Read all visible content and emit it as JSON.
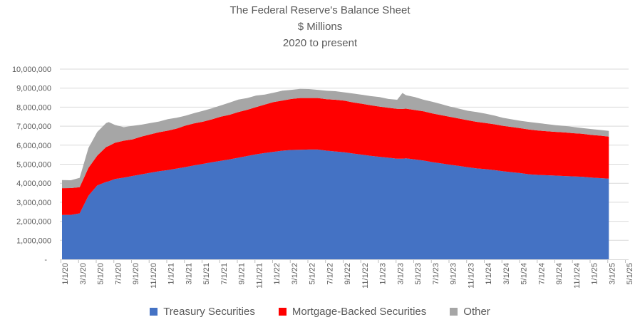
{
  "title": {
    "line1": "The Federal Reserve's Balance Sheet",
    "line2": "$ Millions",
    "line3": "2020 to present"
  },
  "legend": [
    {
      "label": "Treasury Securities",
      "color": "#4472C4"
    },
    {
      "label": "Mortgage-Backed Securities",
      "color": "#FF0000"
    },
    {
      "label": "Other",
      "color": "#A6A6A6"
    }
  ],
  "chart_data": {
    "type": "area",
    "stacked": true,
    "title": "The Federal Reserve's Balance Sheet",
    "subtitle": "$ Millions",
    "period": "2020 to present",
    "legend_position": "bottom",
    "grid": true,
    "ylim": [
      0,
      10000000
    ],
    "ytick_step": 1000000,
    "colors": {
      "treasury": "#4472C4",
      "mbs": "#FF0000",
      "other": "#A6A6A6",
      "gridline": "#D9D9D9",
      "tickmark": "#BFBFBF",
      "text": "#595959"
    },
    "series_names": [
      "Treasury Securities",
      "Mortgage-Backed Securities",
      "Other"
    ],
    "yticks": [
      {
        "value": 10000000,
        "label": "10,000,000"
      },
      {
        "value": 9000000,
        "label": "9,000,000"
      },
      {
        "value": 8000000,
        "label": "8,000,000"
      },
      {
        "value": 7000000,
        "label": "7,000,000"
      },
      {
        "value": 6000000,
        "label": "6,000,000"
      },
      {
        "value": 5000000,
        "label": "5,000,000"
      },
      {
        "value": 4000000,
        "label": "4,000,000"
      },
      {
        "value": 3000000,
        "label": "3,000,000"
      },
      {
        "value": 2000000,
        "label": "2,000,000"
      },
      {
        "value": 1000000,
        "label": "1,000,000"
      },
      {
        "value": 0,
        "label": "-"
      }
    ],
    "xticks": [
      {
        "m": 0,
        "label": "1/1/20"
      },
      {
        "m": 2,
        "label": "3/1/20"
      },
      {
        "m": 4,
        "label": "5/1/20"
      },
      {
        "m": 6,
        "label": "7/1/20"
      },
      {
        "m": 8,
        "label": "9/1/20"
      },
      {
        "m": 10,
        "label": "11/1/20"
      },
      {
        "m": 12,
        "label": "1/1/21"
      },
      {
        "m": 14,
        "label": "3/1/21"
      },
      {
        "m": 16,
        "label": "5/1/21"
      },
      {
        "m": 18,
        "label": "7/1/21"
      },
      {
        "m": 20,
        "label": "9/1/21"
      },
      {
        "m": 22,
        "label": "11/1/21"
      },
      {
        "m": 24,
        "label": "1/1/22"
      },
      {
        "m": 26,
        "label": "3/1/22"
      },
      {
        "m": 28,
        "label": "5/1/22"
      },
      {
        "m": 30,
        "label": "7/1/22"
      },
      {
        "m": 32,
        "label": "9/1/22"
      },
      {
        "m": 34,
        "label": "11/1/22"
      },
      {
        "m": 36,
        "label": "1/1/23"
      },
      {
        "m": 38,
        "label": "3/1/23"
      },
      {
        "m": 40,
        "label": "5/1/23"
      },
      {
        "m": 42,
        "label": "7/1/23"
      },
      {
        "m": 44,
        "label": "9/1/23"
      },
      {
        "m": 46,
        "label": "11/1/23"
      },
      {
        "m": 48,
        "label": "1/1/24"
      },
      {
        "m": 50,
        "label": "3/1/24"
      },
      {
        "m": 52,
        "label": "5/1/24"
      },
      {
        "m": 54,
        "label": "7/1/24"
      },
      {
        "m": 56,
        "label": "9/1/24"
      },
      {
        "m": 58,
        "label": "11/1/24"
      },
      {
        "m": 60,
        "label": "1/1/25"
      },
      {
        "m": 62,
        "label": "3/1/25"
      },
      {
        "m": 64,
        "label": "5/1/25"
      }
    ],
    "points": [
      {
        "date": "1/1/20",
        "m": 0,
        "treasury": 2329000,
        "mbs": 1414000,
        "other": 420000
      },
      {
        "date": "2/1/20",
        "m": 1,
        "treasury": 2337000,
        "mbs": 1407000,
        "other": 415000
      },
      {
        "date": "3/1/20",
        "m": 2,
        "treasury": 2417000,
        "mbs": 1372000,
        "other": 495000
      },
      {
        "date": "4/1/20",
        "m": 3,
        "treasury": 3344000,
        "mbs": 1464000,
        "other": 1050000
      },
      {
        "date": "5/1/20",
        "m": 4,
        "treasury": 3889000,
        "mbs": 1565000,
        "other": 1246000
      },
      {
        "date": "6/1/20",
        "m": 5,
        "treasury": 4066000,
        "mbs": 1835000,
        "other": 1260000
      },
      {
        "date": "6/10/20",
        "m": 5.3,
        "treasury": 4100000,
        "mbs": 1860000,
        "other": 1255000
      },
      {
        "date": "7/1/20",
        "m": 6,
        "treasury": 4222000,
        "mbs": 1906000,
        "other": 935000
      },
      {
        "date": "8/1/20",
        "m": 7,
        "treasury": 4294000,
        "mbs": 1942000,
        "other": 713000
      },
      {
        "date": "9/1/20",
        "m": 8,
        "treasury": 4383000,
        "mbs": 1925000,
        "other": 712000
      },
      {
        "date": "10/1/20",
        "m": 9,
        "treasury": 4468000,
        "mbs": 1982000,
        "other": 630000
      },
      {
        "date": "11/1/20",
        "m": 10,
        "treasury": 4549000,
        "mbs": 2022000,
        "other": 590000
      },
      {
        "date": "12/1/20",
        "m": 11,
        "treasury": 4630000,
        "mbs": 2050000,
        "other": 563000
      },
      {
        "date": "1/1/21",
        "m": 12,
        "treasury": 4690000,
        "mbs": 2075000,
        "other": 605000
      },
      {
        "date": "2/1/21",
        "m": 13,
        "treasury": 4771000,
        "mbs": 2100000,
        "other": 570000
      },
      {
        "date": "3/1/21",
        "m": 14,
        "treasury": 4850000,
        "mbs": 2180000,
        "other": 520000
      },
      {
        "date": "4/1/21",
        "m": 15,
        "treasury": 4940000,
        "mbs": 2210000,
        "other": 540000
      },
      {
        "date": "5/1/21",
        "m": 16,
        "treasury": 5020000,
        "mbs": 2220000,
        "other": 570000
      },
      {
        "date": "6/1/21",
        "m": 17,
        "treasury": 5100000,
        "mbs": 2260000,
        "other": 580000
      },
      {
        "date": "7/1/21",
        "m": 18,
        "treasury": 5180000,
        "mbs": 2320000,
        "other": 590000
      },
      {
        "date": "8/1/21",
        "m": 19,
        "treasury": 5250000,
        "mbs": 2350000,
        "other": 640000
      },
      {
        "date": "9/1/21",
        "m": 20,
        "treasury": 5340000,
        "mbs": 2400000,
        "other": 660000
      },
      {
        "date": "10/1/21",
        "m": 21,
        "treasury": 5430000,
        "mbs": 2430000,
        "other": 620000
      },
      {
        "date": "11/1/21",
        "m": 22,
        "treasury": 5520000,
        "mbs": 2480000,
        "other": 610000
      },
      {
        "date": "12/1/21",
        "m": 23,
        "treasury": 5590000,
        "mbs": 2550000,
        "other": 520000
      },
      {
        "date": "1/1/22",
        "m": 24,
        "treasury": 5650000,
        "mbs": 2620000,
        "other": 490000
      },
      {
        "date": "2/1/22",
        "m": 25,
        "treasury": 5710000,
        "mbs": 2640000,
        "other": 520000
      },
      {
        "date": "3/1/22",
        "m": 26,
        "treasury": 5750000,
        "mbs": 2680000,
        "other": 480000
      },
      {
        "date": "4/1/22",
        "m": 27,
        "treasury": 5760000,
        "mbs": 2720000,
        "other": 480000
      },
      {
        "date": "5/1/22",
        "m": 28,
        "treasury": 5770000,
        "mbs": 2710000,
        "other": 470000
      },
      {
        "date": "6/1/22",
        "m": 29,
        "treasury": 5770000,
        "mbs": 2710000,
        "other": 430000
      },
      {
        "date": "7/1/22",
        "m": 30,
        "treasury": 5710000,
        "mbs": 2710000,
        "other": 440000
      },
      {
        "date": "8/1/22",
        "m": 31,
        "treasury": 5670000,
        "mbs": 2720000,
        "other": 450000
      },
      {
        "date": "9/1/22",
        "m": 32,
        "treasury": 5630000,
        "mbs": 2710000,
        "other": 440000
      },
      {
        "date": "10/1/22",
        "m": 33,
        "treasury": 5560000,
        "mbs": 2690000,
        "other": 470000
      },
      {
        "date": "11/1/22",
        "m": 34,
        "treasury": 5500000,
        "mbs": 2680000,
        "other": 470000
      },
      {
        "date": "12/1/22",
        "m": 35,
        "treasury": 5440000,
        "mbs": 2660000,
        "other": 480000
      },
      {
        "date": "1/1/23",
        "m": 36,
        "treasury": 5390000,
        "mbs": 2640000,
        "other": 500000
      },
      {
        "date": "2/1/23",
        "m": 37,
        "treasury": 5340000,
        "mbs": 2630000,
        "other": 460000
      },
      {
        "date": "3/1/23",
        "m": 38,
        "treasury": 5290000,
        "mbs": 2620000,
        "other": 480000
      },
      {
        "date": "3/19/23",
        "m": 38.6,
        "treasury": 5290000,
        "mbs": 2615000,
        "other": 840000
      },
      {
        "date": "4/1/23",
        "m": 39,
        "treasury": 5310000,
        "mbs": 2610000,
        "other": 710000
      },
      {
        "date": "5/1/23",
        "m": 40,
        "treasury": 5250000,
        "mbs": 2600000,
        "other": 680000
      },
      {
        "date": "6/1/23",
        "m": 41,
        "treasury": 5190000,
        "mbs": 2590000,
        "other": 610000
      },
      {
        "date": "7/1/23",
        "m": 42,
        "treasury": 5110000,
        "mbs": 2560000,
        "other": 610000
      },
      {
        "date": "8/1/23",
        "m": 43,
        "treasury": 5040000,
        "mbs": 2540000,
        "other": 580000
      },
      {
        "date": "9/1/23",
        "m": 44,
        "treasury": 4970000,
        "mbs": 2520000,
        "other": 540000
      },
      {
        "date": "10/1/23",
        "m": 45,
        "treasury": 4910000,
        "mbs": 2490000,
        "other": 520000
      },
      {
        "date": "11/1/23",
        "m": 46,
        "treasury": 4840000,
        "mbs": 2470000,
        "other": 500000
      },
      {
        "date": "12/1/23",
        "m": 47,
        "treasury": 4780000,
        "mbs": 2450000,
        "other": 510000
      },
      {
        "date": "1/1/24",
        "m": 48,
        "treasury": 4740000,
        "mbs": 2430000,
        "other": 490000
      },
      {
        "date": "2/1/24",
        "m": 49,
        "treasury": 4690000,
        "mbs": 2410000,
        "other": 460000
      },
      {
        "date": "3/1/24",
        "m": 50,
        "treasury": 4630000,
        "mbs": 2390000,
        "other": 420000
      },
      {
        "date": "4/1/24",
        "m": 51,
        "treasury": 4580000,
        "mbs": 2380000,
        "other": 400000
      },
      {
        "date": "5/1/24",
        "m": 52,
        "treasury": 4530000,
        "mbs": 2360000,
        "other": 390000
      },
      {
        "date": "6/1/24",
        "m": 53,
        "treasury": 4470000,
        "mbs": 2350000,
        "other": 400000
      },
      {
        "date": "7/1/24",
        "m": 54,
        "treasury": 4440000,
        "mbs": 2330000,
        "other": 390000
      },
      {
        "date": "8/1/24",
        "m": 55,
        "treasury": 4420000,
        "mbs": 2310000,
        "other": 380000
      },
      {
        "date": "9/1/24",
        "m": 56,
        "treasury": 4400000,
        "mbs": 2300000,
        "other": 350000
      },
      {
        "date": "10/1/24",
        "m": 57,
        "treasury": 4380000,
        "mbs": 2290000,
        "other": 340000
      },
      {
        "date": "11/1/24",
        "m": 58,
        "treasury": 4360000,
        "mbs": 2270000,
        "other": 330000
      },
      {
        "date": "12/1/24",
        "m": 59,
        "treasury": 4340000,
        "mbs": 2260000,
        "other": 300000
      },
      {
        "date": "1/1/25",
        "m": 60,
        "treasury": 4300000,
        "mbs": 2240000,
        "other": 310000
      },
      {
        "date": "2/1/25",
        "m": 61,
        "treasury": 4270000,
        "mbs": 2230000,
        "other": 300000
      },
      {
        "date": "3/1/25",
        "m": 62,
        "treasury": 4240000,
        "mbs": 2210000,
        "other": 300000
      }
    ]
  }
}
